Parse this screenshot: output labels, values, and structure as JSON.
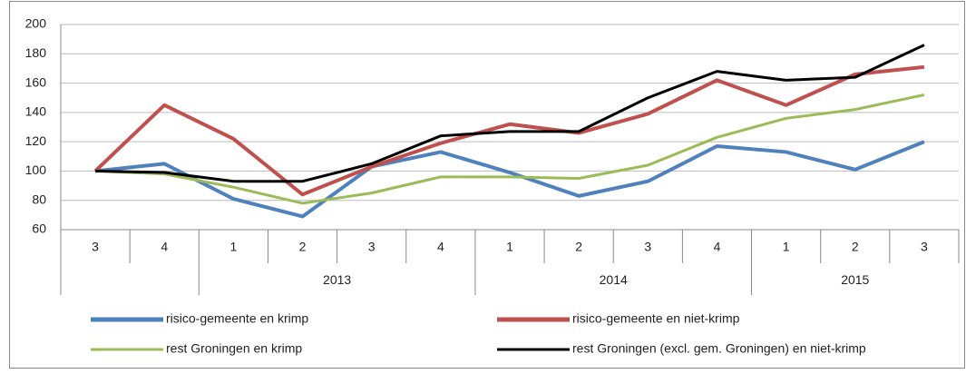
{
  "chart_data": {
    "type": "line",
    "groups": [
      {
        "label": null,
        "categories": [
          "3",
          "4"
        ]
      },
      {
        "label": "2013",
        "categories": [
          "1",
          "2",
          "3",
          "4"
        ]
      },
      {
        "label": "2014",
        "categories": [
          "1",
          "2",
          "3",
          "4"
        ]
      },
      {
        "label": "2015",
        "categories": [
          "1",
          "2",
          "3"
        ]
      }
    ],
    "series": [
      {
        "name": "risico-gemeente en krimp",
        "color": "#4f81bd",
        "values": [
          100,
          105,
          81,
          69,
          103,
          113,
          99,
          83,
          93,
          117,
          113,
          101,
          120
        ]
      },
      {
        "name": "risico-gemeente en niet-krimp",
        "color": "#c0504d",
        "values": [
          100,
          145,
          122,
          84,
          103,
          119,
          132,
          126,
          139,
          162,
          145,
          166,
          171
        ]
      },
      {
        "name": "rest Groningen en krimp",
        "color": "#9bbb59",
        "values": [
          100,
          98,
          89,
          78,
          85,
          96,
          96,
          95,
          104,
          123,
          136,
          142,
          152
        ]
      },
      {
        "name": "rest Groningen (excl. gem. Groningen) en niet-krimp",
        "color": "#000000",
        "values": [
          100,
          99,
          93,
          93,
          105,
          124,
          127,
          127,
          150,
          168,
          162,
          164,
          186
        ]
      }
    ],
    "ylim": [
      60,
      200
    ],
    "yticks": [
      60,
      80,
      100,
      120,
      140,
      160,
      180,
      200
    ],
    "grid": true
  }
}
